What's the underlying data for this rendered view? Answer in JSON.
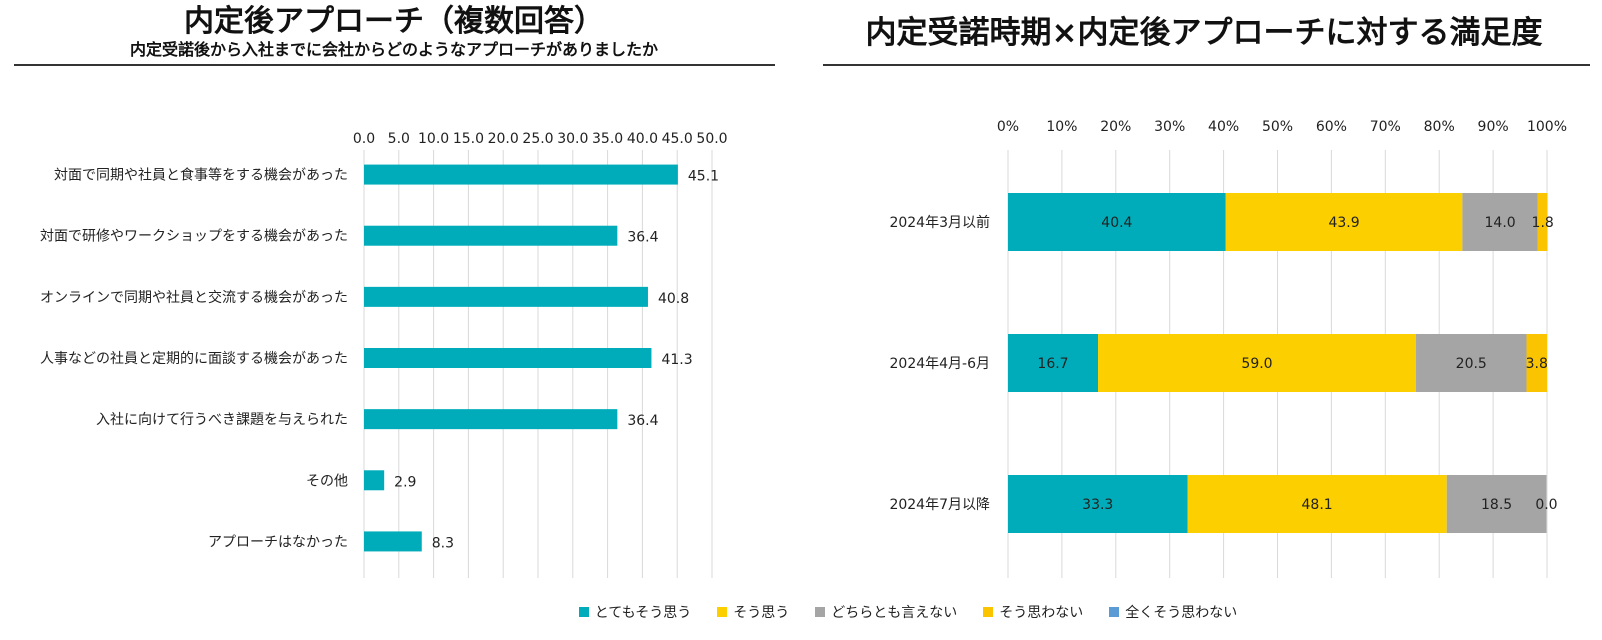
{
  "left": {
    "title": "内定後アプローチ（複数回答）",
    "subtitle": "内定受諾後から入社までに会社からどのようなアプローチがありましたか"
  },
  "right": {
    "title": "内定受諾時期×内定後アプローチに対する満足度"
  },
  "chart_data": [
    {
      "type": "bar",
      "orientation": "horizontal",
      "title": "内定後アプローチ（複数回答）",
      "subtitle": "内定受諾後から入社までに会社からどのようなアプローチがありましたか",
      "categories": [
        "対面で同期や社員と食事等をする機会があった",
        "対面で研修やワークショップをする機会があった",
        "オンラインで同期や社員と交流する機会があった",
        "人事などの社員と定期的に面談する機会があった",
        "入社に向けて行うべき課題を与えられた",
        "その他",
        "アプローチはなかった"
      ],
      "values": [
        45.1,
        36.4,
        40.8,
        41.3,
        36.4,
        2.9,
        8.3
      ],
      "value_labels": [
        "45.1",
        "36.4",
        "40.8",
        "41.3",
        "36.4",
        "2.9",
        "8.3"
      ],
      "xlim": [
        0,
        50
      ],
      "ticks": [
        "0.0",
        "5.0",
        "10.0",
        "15.0",
        "20.0",
        "25.0",
        "30.0",
        "35.0",
        "40.0",
        "45.0",
        "50.0"
      ],
      "color": "#00ACB9",
      "grid": true
    },
    {
      "type": "bar",
      "orientation": "horizontal",
      "stacked": true,
      "percent": true,
      "title": "内定受諾時期×内定後アプローチに対する満足度",
      "categories": [
        "2024年3月以前",
        "2024年4月-6月",
        "2024年7月以降"
      ],
      "ticks": [
        "0%",
        "10%",
        "20%",
        "30%",
        "40%",
        "50%",
        "60%",
        "70%",
        "80%",
        "90%",
        "100%"
      ],
      "xlim": [
        0,
        100
      ],
      "series": [
        {
          "name": "とてもそう思う",
          "color": "#00ACB9",
          "values": [
            40.4,
            16.7,
            33.3
          ],
          "labels": [
            "40.4",
            "16.7",
            "33.3"
          ]
        },
        {
          "name": "そう思う",
          "color": "#FCCF00",
          "values": [
            43.9,
            59.0,
            48.1
          ],
          "labels": [
            "43.9",
            "59.0",
            "48.1"
          ]
        },
        {
          "name": "どちらとも言えない",
          "color": "#A5A5A5",
          "values": [
            14.0,
            20.5,
            18.5
          ],
          "labels": [
            "14.0",
            "20.5",
            "18.5"
          ]
        },
        {
          "name": "そう思わない",
          "color": "#FBC400",
          "values": [
            1.8,
            3.8,
            0.0
          ],
          "labels": [
            "1.8",
            "3.8",
            "0.0"
          ]
        },
        {
          "name": "全くそう思わない",
          "color": "#5B9BD5",
          "values": [
            0,
            0,
            0
          ],
          "labels": []
        }
      ],
      "grid": true,
      "legend_position": "bottom"
    }
  ]
}
